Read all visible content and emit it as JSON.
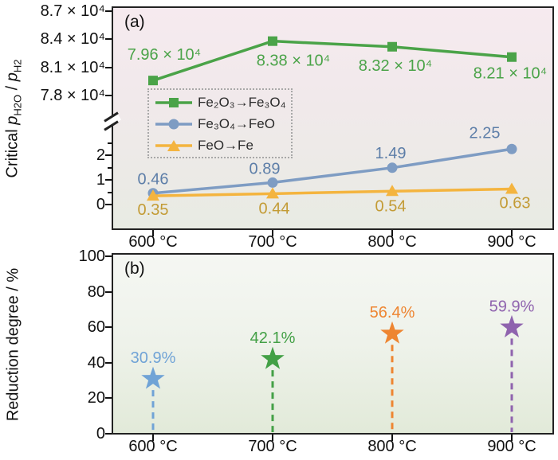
{
  "panel_a": {
    "label": "(a)",
    "y_title": {
      "prefix": "Critical ",
      "p1": "p",
      "sub1": "H2O",
      "sep": " / ",
      "p2": "p",
      "sub2": "H2"
    }
  },
  "panel_b": {
    "label": "(b)",
    "y_title": "Reduction degree / %"
  },
  "colors": {
    "border": "#222222",
    "panel_a_bg_top": "#f6eaef",
    "panel_a_bg_bottom": "#e8ebe3",
    "panel_b_bg_top": "#f5f7f3",
    "panel_b_bg_bottom": "#e2ead9",
    "legend_border": "#a8a8a8"
  },
  "chart_data": [
    {
      "panel": "a",
      "type": "line",
      "title": "",
      "ylabel": "Critical pH2O / pH2",
      "categories": [
        "600 °C",
        "700 °C",
        "800 °C",
        "900 °C"
      ],
      "y_axis_break": true,
      "legend_position": "upper-left-inside",
      "upper_axis": {
        "tick_labels": [
          "8.7 × 10⁴",
          "8.4 × 10⁴",
          "8.1 × 10⁴",
          "7.8 × 10⁴"
        ],
        "tick_values": [
          87000,
          84000,
          81000,
          78000
        ],
        "range": [
          77500,
          87500
        ]
      },
      "lower_axis": {
        "tick_labels": [
          "2",
          "1",
          "0"
        ],
        "tick_values": [
          2,
          1,
          0
        ],
        "minor_tick_values": [
          2.5,
          1.5,
          0.5
        ],
        "range": [
          -0.3,
          3.3
        ]
      },
      "series": [
        {
          "name": "Fe₂O₃→Fe₃O₄",
          "axis": "upper",
          "marker": "square",
          "color": "#4aa348",
          "label_color": "#4aa348",
          "values": [
            79600,
            83800,
            83200,
            82100
          ],
          "point_labels": [
            "7.96 × 10⁴",
            "8.38 × 10⁴",
            "8.32 × 10⁴",
            "8.21 × 10⁴"
          ]
        },
        {
          "name": "Fe₃O₄→FeO",
          "axis": "lower",
          "marker": "circle",
          "color": "#7e9cc3",
          "label_color": "#5d7ea8",
          "values": [
            0.46,
            0.89,
            1.49,
            2.25
          ],
          "point_labels": [
            "0.46",
            "0.89",
            "1.49",
            "2.25"
          ]
        },
        {
          "name": "FeO→Fe",
          "axis": "lower",
          "marker": "triangle",
          "color": "#f4b43f",
          "label_color": "#c39b35",
          "values": [
            0.35,
            0.44,
            0.54,
            0.63
          ],
          "point_labels": [
            "0.35",
            "0.44",
            "0.54",
            "0.63"
          ]
        }
      ]
    },
    {
      "panel": "b",
      "type": "scatter",
      "marker": "star",
      "ylabel": "Reduction degree / %",
      "categories": [
        "600 °C",
        "700 °C",
        "800 °C",
        "900 °C"
      ],
      "ylim": [
        0,
        100
      ],
      "y_ticks": [
        100,
        80,
        60,
        40,
        20,
        0
      ],
      "stem_style": "dashed",
      "points": [
        {
          "category": "600 °C",
          "value": 30.9,
          "label": "30.9%",
          "color": "#70a3d6"
        },
        {
          "category": "700 °C",
          "value": 42.1,
          "label": "42.1%",
          "color": "#43a046"
        },
        {
          "category": "800 °C",
          "value": 56.4,
          "label": "56.4%",
          "color": "#ee8531"
        },
        {
          "category": "900 °C",
          "value": 59.9,
          "label": "59.9%",
          "color": "#8f63ae"
        }
      ]
    }
  ]
}
